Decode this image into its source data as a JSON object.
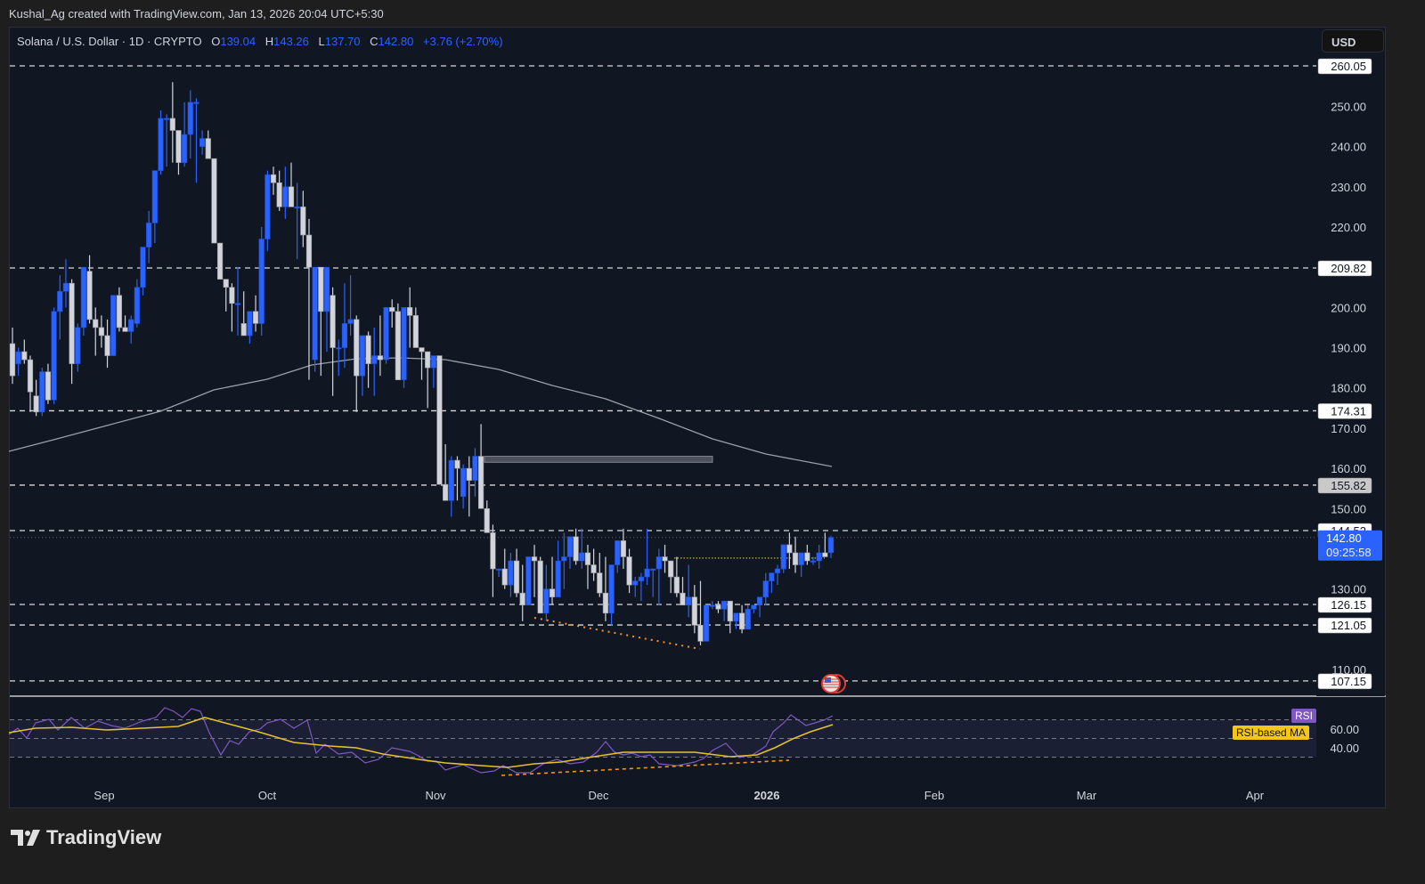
{
  "caption": "Kushal_Ag created with TradingView.com, Jan 13, 2026 20:04 UTC+5:30",
  "legend": {
    "symbol": "Solana / U.S. Dollar · 1D · CRYPTO",
    "o_label": "O",
    "o": "139.04",
    "h_label": "H",
    "h": "143.26",
    "l_label": "L",
    "l": "137.70",
    "c_label": "C",
    "c": "142.80",
    "change": "+3.76 (+2.70%)"
  },
  "currency_button": "USD",
  "price_axis": {
    "ticks": [
      "250.00",
      "240.00",
      "230.00",
      "220.00",
      "200.00",
      "190.00",
      "180.00",
      "170.00",
      "160.00",
      "150.00",
      "130.00",
      "110.00"
    ],
    "level_labels": [
      "260.05",
      "209.82",
      "174.31",
      "155.82",
      "144.52",
      "126.15",
      "121.05",
      "107.15"
    ],
    "current_price": "142.80",
    "countdown": "09:25:58"
  },
  "rsi_axis": {
    "ticks": [
      "60.00",
      "40.00"
    ],
    "rsi_tag": "RSI",
    "ma_tag": "RSI-based MA"
  },
  "time_axis": [
    "Sep",
    "Oct",
    "Nov",
    "Dec",
    "2026",
    "Feb",
    "Mar",
    "Apr"
  ],
  "branding": "TradingView",
  "colors": {
    "up": "#2962ff",
    "down": "#d1d4dc",
    "bg": "#111722",
    "rsi": "#7e57c2",
    "rsi_ma": "#e6c02e",
    "divergence": "#f7931a"
  },
  "chart_data": {
    "type": "candlestick",
    "title": "Solana / U.S. Dollar · 1D · CRYPTO",
    "ylim": [
      103,
      262
    ],
    "horizontal_levels": [
      260.05,
      209.82,
      174.31,
      155.82,
      144.52,
      126.15,
      121.05,
      107.15
    ],
    "resistance_zone": [
      161.5,
      163
    ],
    "current": {
      "open": 139.04,
      "high": 143.26,
      "low": 137.7,
      "close": 142.8,
      "change": 3.76,
      "change_pct": 2.7
    },
    "x_ticks": [
      "Sep",
      "Oct",
      "Nov",
      "Dec",
      "2026",
      "Feb",
      "Mar",
      "Apr"
    ],
    "candles": [
      [
        191,
        195,
        181,
        183
      ],
      [
        186,
        190,
        183,
        189
      ],
      [
        189,
        192,
        186,
        187
      ],
      [
        187,
        188,
        174,
        179
      ],
      [
        178,
        182,
        173,
        174
      ],
      [
        174,
        185,
        173,
        184
      ],
      [
        184,
        186,
        176,
        177
      ],
      [
        177,
        200,
        176,
        199
      ],
      [
        199,
        208,
        192,
        204
      ],
      [
        204,
        212,
        200,
        206
      ],
      [
        206,
        207,
        181,
        186
      ],
      [
        186,
        196,
        184,
        195
      ],
      [
        195,
        209,
        193,
        210
      ],
      [
        209,
        213,
        196,
        197
      ],
      [
        197,
        200,
        188,
        195
      ],
      [
        195,
        198,
        190,
        193
      ],
      [
        193,
        197,
        185,
        188
      ],
      [
        188,
        203,
        188,
        203
      ],
      [
        203,
        205,
        194,
        195
      ],
      [
        195,
        198,
        194,
        194
      ],
      [
        194,
        198,
        191,
        197
      ],
      [
        196,
        207,
        195,
        205
      ],
      [
        205,
        215,
        203,
        215
      ],
      [
        215,
        224,
        211,
        221
      ],
      [
        221,
        229,
        216,
        234
      ],
      [
        234,
        249,
        233,
        247
      ],
      [
        247,
        248,
        235,
        247
      ],
      [
        247,
        256,
        236,
        244
      ],
      [
        244,
        244,
        233,
        236
      ],
      [
        236,
        251,
        235,
        243
      ],
      [
        243,
        254,
        237,
        251
      ],
      [
        251,
        252,
        231,
        251
      ],
      [
        240,
        244,
        238,
        242
      ],
      [
        242,
        244,
        237,
        237
      ],
      [
        237,
        236,
        216,
        216
      ],
      [
        216,
        216,
        209,
        207
      ],
      [
        207,
        207,
        199,
        205
      ],
      [
        205,
        206,
        194,
        201
      ],
      [
        201,
        210,
        193,
        201
      ],
      [
        196,
        204,
        194,
        193
      ],
      [
        193,
        198,
        191,
        199
      ],
      [
        199,
        203,
        194,
        196
      ],
      [
        196,
        220,
        193,
        217
      ],
      [
        217,
        234,
        214,
        233
      ],
      [
        233,
        235,
        228,
        231
      ],
      [
        231,
        234,
        224,
        225
      ],
      [
        225,
        235,
        222,
        230
      ],
      [
        230,
        236,
        225,
        225
      ],
      [
        225,
        231,
        212,
        225
      ],
      [
        225,
        229,
        215,
        218
      ],
      [
        218,
        222,
        182,
        210
      ],
      [
        187,
        210,
        184,
        210
      ],
      [
        210,
        210,
        183,
        199
      ],
      [
        199,
        206,
        189,
        210
      ],
      [
        203,
        205,
        178,
        190
      ],
      [
        190,
        192,
        183,
        190
      ],
      [
        190,
        206,
        185,
        196
      ],
      [
        196,
        208,
        193,
        197
      ],
      [
        197,
        198,
        174,
        183
      ],
      [
        183,
        185,
        178,
        193
      ],
      [
        193,
        194,
        180,
        186
      ],
      [
        186,
        195,
        178,
        188
      ],
      [
        188,
        198,
        183,
        187
      ],
      [
        187,
        199,
        186,
        200
      ],
      [
        200,
        202,
        195,
        199
      ],
      [
        199,
        201,
        182,
        182
      ],
      [
        182,
        200,
        180,
        200
      ],
      [
        200,
        205,
        190,
        198
      ],
      [
        198,
        200,
        190,
        190
      ],
      [
        190,
        188,
        182,
        189
      ],
      [
        189,
        189,
        175,
        185
      ],
      [
        185,
        184,
        180,
        188
      ],
      [
        188,
        188,
        168,
        156
      ],
      [
        156,
        166,
        152,
        152
      ],
      [
        152,
        163,
        148,
        162
      ],
      [
        162,
        163,
        152,
        160
      ],
      [
        153,
        161,
        150,
        160
      ],
      [
        160,
        163,
        148,
        157
      ],
      [
        157,
        165,
        153,
        163
      ],
      [
        163,
        171,
        151,
        150
      ],
      [
        150,
        152,
        145,
        144
      ],
      [
        144,
        146,
        128,
        135
      ],
      [
        135,
        135,
        133,
        135
      ],
      [
        135,
        140,
        130,
        131
      ],
      [
        131,
        139,
        128,
        137
      ],
      [
        137,
        140,
        128,
        129
      ],
      [
        129,
        136,
        122,
        126
      ],
      [
        126,
        138,
        126,
        138
      ],
      [
        138,
        141,
        128,
        137
      ],
      [
        137,
        138,
        130,
        124
      ],
      [
        124,
        136,
        122,
        130
      ],
      [
        130,
        138,
        126,
        128
      ],
      [
        128,
        142,
        129,
        137
      ],
      [
        137,
        144,
        130,
        138
      ],
      [
        138,
        143,
        135,
        143
      ],
      [
        143,
        145,
        136,
        137
      ],
      [
        137,
        145,
        135,
        139
      ],
      [
        139,
        141,
        130,
        136
      ],
      [
        136,
        140,
        132,
        134
      ],
      [
        134,
        139,
        128,
        129
      ],
      [
        129,
        138,
        122,
        124
      ],
      [
        124,
        136,
        121,
        136
      ],
      [
        136,
        141,
        134,
        142
      ],
      [
        142,
        145,
        135,
        138
      ],
      [
        138,
        140,
        129,
        131
      ],
      [
        131,
        133,
        128,
        132
      ],
      [
        132,
        134,
        127,
        133
      ],
      [
        133,
        145,
        131,
        135
      ],
      [
        135,
        135,
        128,
        135
      ],
      [
        135,
        140,
        126,
        138
      ],
      [
        138,
        141,
        134,
        137
      ],
      [
        137,
        136,
        129,
        133
      ],
      [
        133,
        138,
        128,
        129
      ],
      [
        129,
        133,
        127,
        126
      ],
      [
        126,
        136,
        123,
        128
      ],
      [
        128,
        131,
        119,
        121
      ],
      [
        121,
        132,
        116,
        117
      ],
      [
        117,
        123,
        117,
        126
      ],
      [
        126,
        127,
        125,
        126
      ],
      [
        126,
        127,
        124,
        125
      ],
      [
        125,
        127,
        122,
        127
      ],
      [
        127,
        126,
        119,
        122
      ],
      [
        122,
        124,
        120,
        124
      ],
      [
        124,
        126,
        119,
        120
      ],
      [
        120,
        126,
        120,
        125
      ],
      [
        125,
        126,
        124,
        126
      ],
      [
        126,
        128,
        123,
        128
      ],
      [
        128,
        134,
        126,
        132
      ],
      [
        132,
        134,
        129,
        134
      ],
      [
        134,
        136,
        131,
        135
      ],
      [
        135,
        141,
        134,
        141
      ],
      [
        141,
        144,
        135,
        139
      ],
      [
        139,
        143,
        134,
        136
      ],
      [
        136,
        139,
        133,
        139
      ],
      [
        139,
        141,
        136,
        137
      ],
      [
        137,
        138,
        136,
        137
      ],
      [
        137,
        141,
        135,
        139
      ],
      [
        139,
        144,
        138,
        138
      ],
      [
        139.04,
        143.26,
        137.7,
        142.8
      ]
    ]
  }
}
